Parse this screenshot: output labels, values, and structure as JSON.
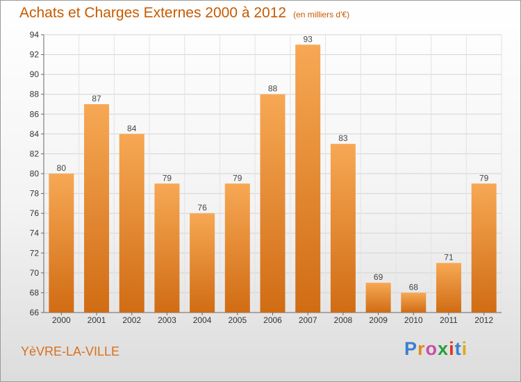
{
  "title": "Achats et Charges Externes 2000 à 2012",
  "subtitle": "(en milliers d'€)",
  "location": "YèVRE-LA-VILLE",
  "logo": {
    "text": "Proxiti",
    "colors": [
      "#3a7fd0",
      "#e08a1e",
      "#c84fa6",
      "#2a9e3d",
      "#e0341c",
      "#3a7fd0",
      "#e0a81c"
    ]
  },
  "colors": {
    "bar_light": "#f7a854",
    "bar_dark": "#d06c14",
    "title": "#c65a00",
    "grid": "#d4d4d4"
  },
  "chart_data": {
    "type": "bar",
    "title": "Achats et Charges Externes 2000 à 2012",
    "subtitle": "(en milliers d'€)",
    "categories": [
      "2000",
      "2001",
      "2002",
      "2003",
      "2004",
      "2005",
      "2006",
      "2007",
      "2008",
      "2009",
      "2010",
      "2011",
      "2012"
    ],
    "values": [
      80,
      87,
      84,
      79,
      76,
      79,
      88,
      93,
      83,
      69,
      68,
      71,
      79
    ],
    "ylim": [
      66,
      94
    ],
    "yticks": [
      66,
      68,
      70,
      72,
      74,
      76,
      78,
      80,
      82,
      84,
      86,
      88,
      90,
      92,
      94
    ],
    "grid": true,
    "data_labels": true
  }
}
